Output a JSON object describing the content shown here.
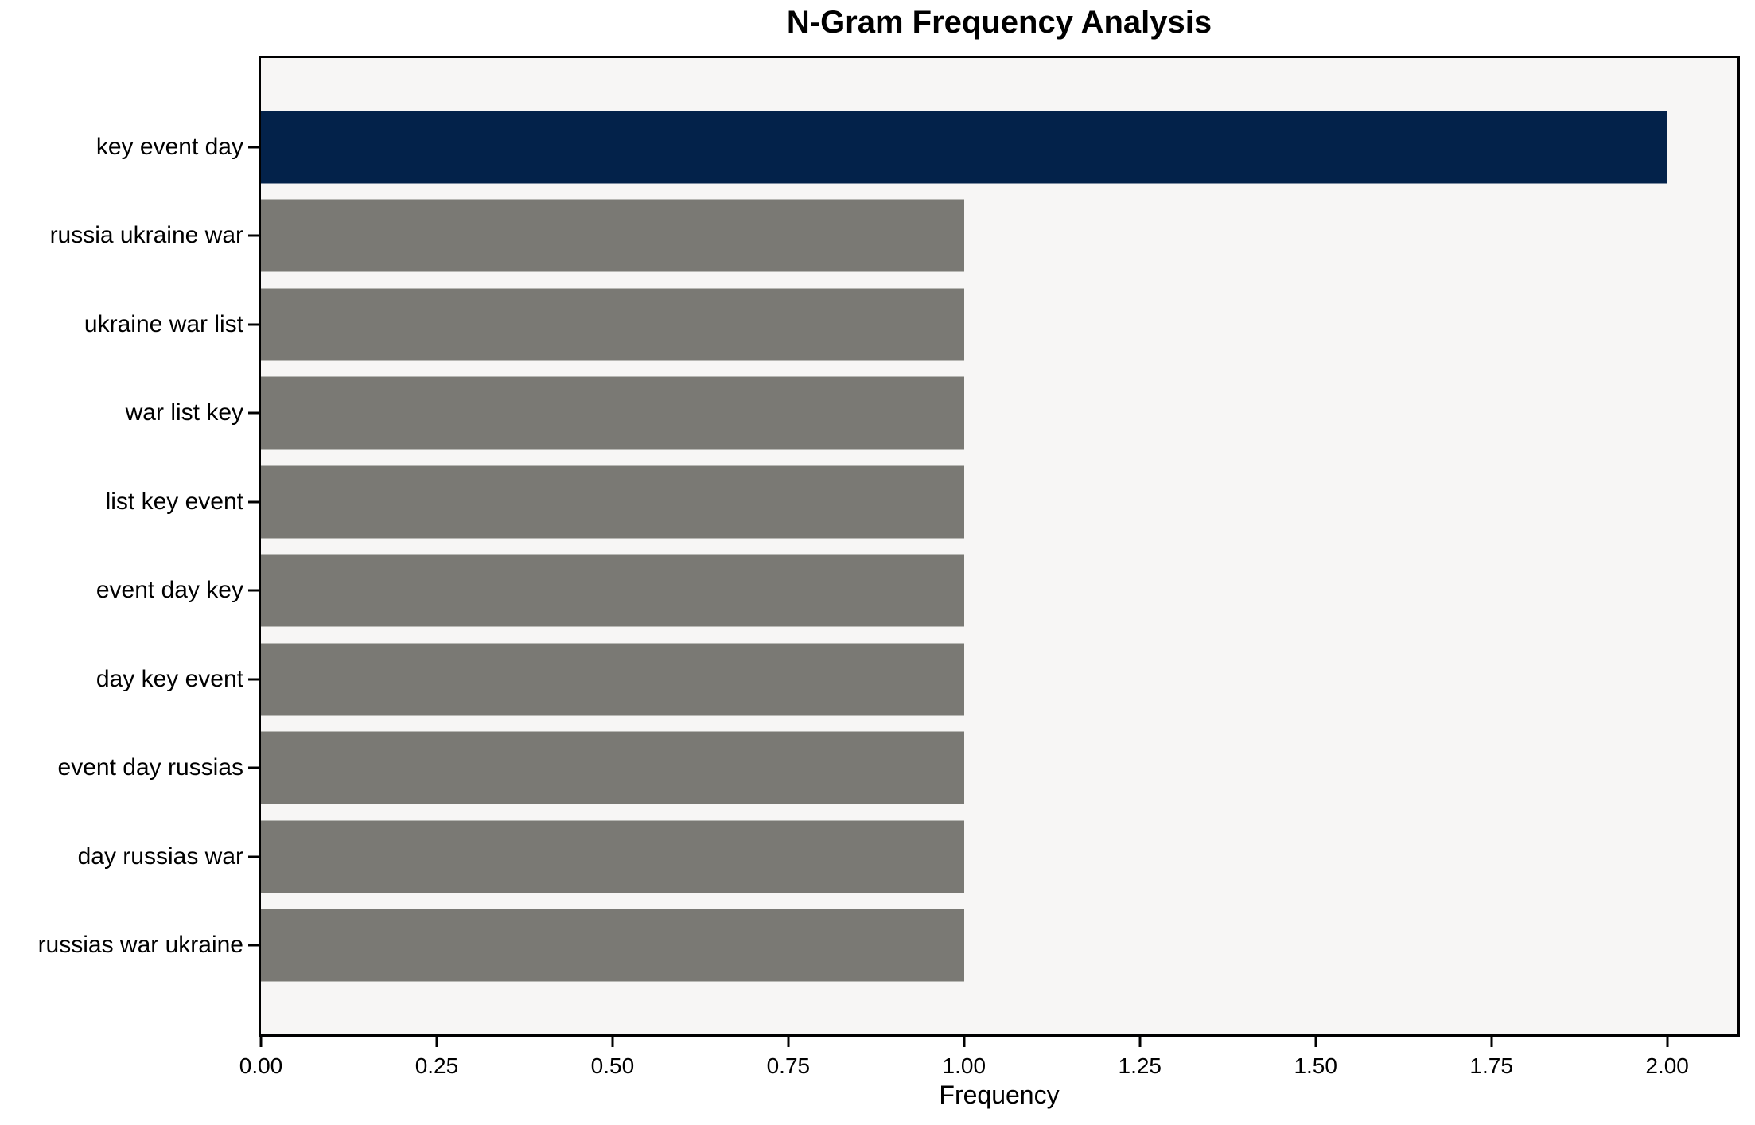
{
  "figure": {
    "background": "#ffffff",
    "plot_background": "#f7f6f5",
    "spine_color": "#000000",
    "text_color": "#000000"
  },
  "chart_data": {
    "type": "bar",
    "orientation": "horizontal",
    "title": "N-Gram Frequency Analysis",
    "xlabel": "Frequency",
    "ylabel": "",
    "categories": [
      "key event day",
      "russia ukraine war",
      "ukraine war list",
      "war list key",
      "list key event",
      "event day key",
      "day key event",
      "event day russias",
      "day russias war",
      "russias war ukraine"
    ],
    "values": [
      2,
      1,
      1,
      1,
      1,
      1,
      1,
      1,
      1,
      1
    ],
    "xlim": [
      0,
      2.1
    ],
    "xticks": [
      {
        "value": 0.0,
        "label": "0.00"
      },
      {
        "value": 0.25,
        "label": "0.25"
      },
      {
        "value": 0.5,
        "label": "0.50"
      },
      {
        "value": 0.75,
        "label": "0.75"
      },
      {
        "value": 1.0,
        "label": "1.00"
      },
      {
        "value": 1.25,
        "label": "1.25"
      },
      {
        "value": 1.5,
        "label": "1.50"
      },
      {
        "value": 1.75,
        "label": "1.75"
      },
      {
        "value": 2.0,
        "label": "2.00"
      }
    ],
    "grid": false,
    "legend": false,
    "highlight_index": 0,
    "highlight_color": "#03224a",
    "bar_color": "#7a7974"
  }
}
